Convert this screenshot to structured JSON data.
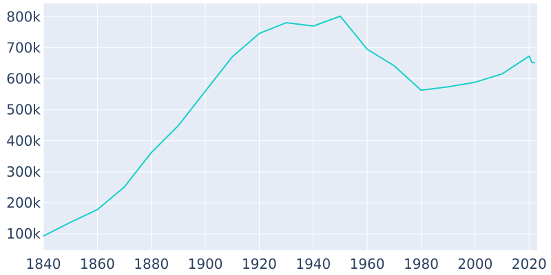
{
  "chart_data": {
    "type": "line",
    "title": "",
    "xlabel": "",
    "ylabel": "",
    "xlim": [
      1840,
      2023
    ],
    "ylim": [
      47000,
      843000
    ],
    "x_ticks": [
      1840,
      1860,
      1880,
      1900,
      1920,
      1940,
      1960,
      1980,
      2000,
      2020
    ],
    "x_tick_labels": [
      "1840",
      "1860",
      "1880",
      "1900",
      "1920",
      "1940",
      "1960",
      "1980",
      "2000",
      "2020"
    ],
    "y_ticks": [
      100000,
      200000,
      300000,
      400000,
      500000,
      600000,
      700000,
      800000
    ],
    "y_tick_labels": [
      "100k",
      "200k",
      "300k",
      "400k",
      "500k",
      "600k",
      "700k",
      "800k"
    ],
    "grid": true,
    "background": "#e5ecf6",
    "series": [
      {
        "color": "#17cfc9",
        "x": [
          1840,
          1850,
          1860,
          1870,
          1880,
          1890,
          1900,
          1910,
          1920,
          1930,
          1940,
          1950,
          1960,
          1970,
          1980,
          1990,
          2000,
          2010,
          2020,
          2021,
          2022
        ],
        "y": [
          93000,
          137000,
          178000,
          251000,
          362000,
          449000,
          560000,
          671000,
          746000,
          781000,
          770000,
          802000,
          695000,
          642000,
          563000,
          574000,
          589000,
          616000,
          673000,
          653000,
          652000
        ]
      }
    ]
  }
}
